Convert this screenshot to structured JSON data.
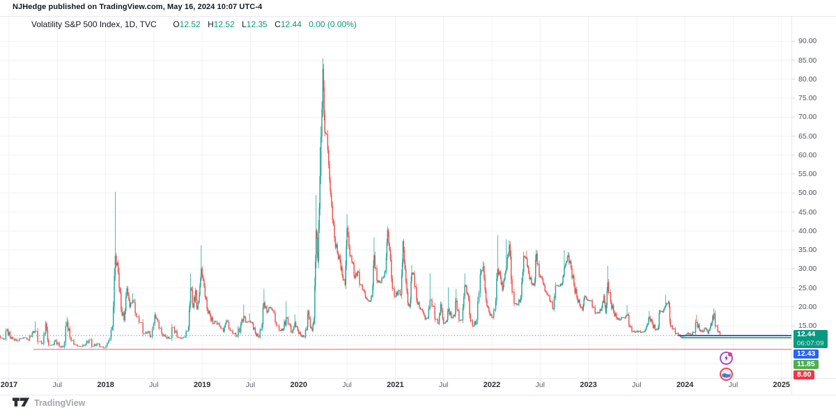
{
  "page": {
    "attribution": "NJHedge published on TradingView.com, May 16, 2024 10:07 UTC-4",
    "watermark_brand": "TradingView"
  },
  "legend": {
    "symbol_title": "Volatility S&P 500 Index, 1D, TVC",
    "open_label": "O",
    "open": "12.52",
    "high_label": "H",
    "high": "12.52",
    "low_label": "L",
    "low": "12.35",
    "close_label": "C",
    "close": "12.44",
    "change": "0.00 (0.00%)"
  },
  "colors": {
    "up": "#26a69a",
    "down": "#ef5350",
    "accent_teal": "#089981",
    "accent_blue": "#2962ff",
    "accent_green": "#4caf50",
    "accent_red": "#f23645",
    "grid": "#f0f2f6",
    "axis_stub": "#d1d4dc"
  },
  "chart_data": {
    "type": "candlestick",
    "title": "Volatility S&P 500 Index",
    "interval": "1D",
    "exchange": "TVC",
    "legend_ohlc": {
      "open": 12.52,
      "high": 12.52,
      "low": 12.35,
      "close": 12.44,
      "change_pct": "0.00%"
    },
    "y_axis": {
      "tick_labels": [
        90,
        85,
        80,
        75,
        70,
        65,
        60,
        55,
        50,
        45,
        40,
        35,
        30,
        25,
        20,
        15
      ],
      "unlabeled_grid": [
        10,
        5
      ],
      "format": "0.00",
      "side": "right"
    },
    "x_axis": {
      "ticks": [
        {
          "t": 2017.0,
          "label": "2017",
          "major": true
        },
        {
          "t": 2017.5,
          "label": "Jul"
        },
        {
          "t": 2018.0,
          "label": "2018",
          "major": true
        },
        {
          "t": 2018.5,
          "label": "Jul"
        },
        {
          "t": 2019.0,
          "label": "2019",
          "major": true
        },
        {
          "t": 2019.5,
          "label": "Jul"
        },
        {
          "t": 2020.0,
          "label": "2020",
          "major": true
        },
        {
          "t": 2020.5,
          "label": "Jul"
        },
        {
          "t": 2021.0,
          "label": "2021",
          "major": true
        },
        {
          "t": 2021.5,
          "label": "Jul"
        },
        {
          "t": 2022.0,
          "label": "2022",
          "major": true
        },
        {
          "t": 2022.5,
          "label": "Jul"
        },
        {
          "t": 2023.0,
          "label": "2023",
          "major": true
        },
        {
          "t": 2023.5,
          "label": "Jul"
        },
        {
          "t": 2024.0,
          "label": "2024",
          "major": true
        },
        {
          "t": 2024.5,
          "label": "Jul"
        },
        {
          "t": 2025.0,
          "label": "2025",
          "major": true
        }
      ]
    },
    "price_lines": [
      {
        "kind": "current-price",
        "value": 12.44,
        "label": "12.44",
        "countdown": "06:07:09",
        "color": "#089981",
        "style": "dotted",
        "from_t": 2016.87
      },
      {
        "kind": "level",
        "value": 12.43,
        "label": "12.43",
        "color": "#2962ff",
        "style": "solid",
        "from_t": 2023.93
      },
      {
        "kind": "level",
        "value": 11.85,
        "label": "11.85",
        "color": "#4caf50",
        "style": "solid",
        "from_t": 2023.96
      },
      {
        "kind": "level",
        "value": 8.8,
        "label": "8.80",
        "color": "#f23645",
        "style": "solid",
        "from_t": 2017.25
      }
    ],
    "series": {
      "name": "VIX weekly approximation (t in decimal years, close, optional spike high)",
      "points": [
        [
          2016.87,
          13.0
        ],
        [
          2016.9,
          12.2
        ],
        [
          2016.94,
          11.4
        ],
        [
          2016.98,
          14.0
        ],
        [
          2017.01,
          12.0
        ],
        [
          2017.04,
          11.6
        ],
        [
          2017.08,
          11.0
        ],
        [
          2017.12,
          11.6
        ],
        [
          2017.16,
          11.9
        ],
        [
          2017.2,
          11.2
        ],
        [
          2017.24,
          13.1
        ],
        [
          2017.27,
          13.6,
          16.2
        ],
        [
          2017.31,
          10.8
        ],
        [
          2017.35,
          10.4
        ],
        [
          2017.38,
          15.6,
          16.3
        ],
        [
          2017.41,
          9.9
        ],
        [
          2017.45,
          10.0
        ],
        [
          2017.48,
          11.2
        ],
        [
          2017.52,
          9.6
        ],
        [
          2017.56,
          9.4
        ],
        [
          2017.6,
          16.0,
          17.3
        ],
        [
          2017.63,
          11.9
        ],
        [
          2017.67,
          10.2
        ],
        [
          2017.71,
          9.6
        ],
        [
          2017.75,
          9.5
        ],
        [
          2017.79,
          10.1
        ],
        [
          2017.83,
          11.3
        ],
        [
          2017.87,
          9.6
        ],
        [
          2017.91,
          10.3
        ],
        [
          2017.95,
          9.5
        ],
        [
          2017.99,
          9.2
        ],
        [
          2018.03,
          11.1
        ],
        [
          2018.07,
          14.8
        ],
        [
          2018.1,
          33.5,
          50.3
        ],
        [
          2018.13,
          29.1
        ],
        [
          2018.16,
          19.5
        ],
        [
          2018.19,
          16.5
        ],
        [
          2018.22,
          24.9
        ],
        [
          2018.25,
          20.0
        ],
        [
          2018.28,
          21.8,
          23.6
        ],
        [
          2018.32,
          17.4
        ],
        [
          2018.36,
          15.9
        ],
        [
          2018.4,
          12.9
        ],
        [
          2018.44,
          13.5
        ],
        [
          2018.47,
          12.1
        ],
        [
          2018.51,
          17.9
        ],
        [
          2018.54,
          16.1
        ],
        [
          2018.58,
          12.9
        ],
        [
          2018.62,
          12.1
        ],
        [
          2018.66,
          11.6
        ],
        [
          2018.7,
          14.6
        ],
        [
          2018.74,
          12.1
        ],
        [
          2018.78,
          11.6
        ],
        [
          2018.82,
          12.1
        ],
        [
          2018.86,
          14.8
        ],
        [
          2018.88,
          25.0,
          28.8
        ],
        [
          2018.91,
          19.9
        ],
        [
          2018.93,
          24.2
        ],
        [
          2018.95,
          19.5
        ],
        [
          2018.97,
          23.2
        ],
        [
          2018.99,
          30.1,
          36.2
        ],
        [
          2019.02,
          25.4
        ],
        [
          2019.05,
          19.5
        ],
        [
          2019.08,
          17.8
        ],
        [
          2019.11,
          15.7
        ],
        [
          2019.14,
          16.1
        ],
        [
          2019.18,
          14.9
        ],
        [
          2019.22,
          13.5
        ],
        [
          2019.25,
          16.4
        ],
        [
          2019.29,
          13.7
        ],
        [
          2019.33,
          12.9
        ],
        [
          2019.36,
          12.3
        ],
        [
          2019.4,
          15.4
        ],
        [
          2019.43,
          17.5,
          20.6
        ],
        [
          2019.46,
          15.9
        ],
        [
          2019.49,
          16.3,
          18.3
        ],
        [
          2019.52,
          15.6
        ],
        [
          2019.55,
          13.1
        ],
        [
          2019.58,
          12.1
        ],
        [
          2019.61,
          13.9
        ],
        [
          2019.64,
          21.1,
          24.8
        ],
        [
          2019.67,
          18.5
        ],
        [
          2019.7,
          19.9
        ],
        [
          2019.73,
          19.0
        ],
        [
          2019.77,
          15.0
        ],
        [
          2019.81,
          13.7
        ],
        [
          2019.84,
          14.2
        ],
        [
          2019.87,
          17.2,
          21.5
        ],
        [
          2019.9,
          15.5
        ],
        [
          2019.93,
          13.2
        ],
        [
          2019.96,
          15.9,
          18.0
        ],
        [
          2019.99,
          13.8
        ],
        [
          2020.02,
          12.5
        ],
        [
          2020.05,
          12.1
        ],
        [
          2020.08,
          13.9
        ],
        [
          2020.1,
          18.8
        ],
        [
          2020.12,
          14.9
        ],
        [
          2020.14,
          13.7
        ],
        [
          2020.16,
          17.1
        ],
        [
          2020.18,
          40.1,
          49.5
        ],
        [
          2020.2,
          32.0
        ],
        [
          2020.22,
          54.5,
          62.1
        ],
        [
          2020.25,
          82.7,
          85.47
        ],
        [
          2020.27,
          66.0,
          72.0
        ],
        [
          2020.29,
          65.5
        ],
        [
          2020.32,
          53.5
        ],
        [
          2020.34,
          46.7
        ],
        [
          2020.37,
          38.0
        ],
        [
          2020.4,
          34.2
        ],
        [
          2020.43,
          31.9
        ],
        [
          2020.45,
          28.2
        ],
        [
          2020.48,
          25.8
        ],
        [
          2020.5,
          40.8,
          44.4
        ],
        [
          2020.53,
          33.5
        ],
        [
          2020.56,
          31.5
        ],
        [
          2020.58,
          27.7
        ],
        [
          2020.61,
          29.3
        ],
        [
          2020.64,
          25.8
        ],
        [
          2020.67,
          24.5
        ],
        [
          2020.7,
          22.2
        ],
        [
          2020.73,
          21.4
        ],
        [
          2020.76,
          23.0
        ],
        [
          2020.78,
          33.6,
          38.3
        ],
        [
          2020.81,
          26.9
        ],
        [
          2020.84,
          26.4
        ],
        [
          2020.87,
          27.6
        ],
        [
          2020.9,
          29.4
        ],
        [
          2020.92,
          40.3,
          41.2
        ],
        [
          2020.94,
          35.0
        ],
        [
          2020.97,
          24.8
        ],
        [
          2021.0,
          22.7
        ],
        [
          2021.03,
          24.3
        ],
        [
          2021.06,
          23.2
        ],
        [
          2021.08,
          37.2,
          37.5
        ],
        [
          2021.1,
          30.0
        ],
        [
          2021.13,
          21.0
        ],
        [
          2021.15,
          20.0
        ],
        [
          2021.17,
          28.9,
          31.0
        ],
        [
          2021.19,
          28.6
        ],
        [
          2021.22,
          21.9
        ],
        [
          2021.25,
          19.8
        ],
        [
          2021.28,
          18.9
        ],
        [
          2021.31,
          16.7
        ],
        [
          2021.34,
          17.3
        ],
        [
          2021.36,
          21.8,
          28.9
        ],
        [
          2021.39,
          20.2
        ],
        [
          2021.42,
          16.7
        ],
        [
          2021.45,
          15.7
        ],
        [
          2021.47,
          20.7
        ],
        [
          2021.5,
          15.6
        ],
        [
          2021.53,
          16.2
        ],
        [
          2021.55,
          19.4,
          25.1
        ],
        [
          2021.58,
          17.2
        ],
        [
          2021.61,
          17.6
        ],
        [
          2021.63,
          21.6,
          24.7
        ],
        [
          2021.66,
          16.4
        ],
        [
          2021.69,
          16.5
        ],
        [
          2021.72,
          25.7,
          28.8
        ],
        [
          2021.75,
          23.1
        ],
        [
          2021.78,
          16.3
        ],
        [
          2021.81,
          15.0
        ],
        [
          2021.84,
          16.5
        ],
        [
          2021.88,
          28.6
        ],
        [
          2021.91,
          30.7,
          32.1
        ],
        [
          2021.94,
          21.6
        ],
        [
          2021.97,
          18.7
        ],
        [
          2022.0,
          17.2
        ],
        [
          2022.03,
          19.2
        ],
        [
          2022.06,
          29.9,
          38.9
        ],
        [
          2022.09,
          27.7
        ],
        [
          2022.11,
          24.4
        ],
        [
          2022.13,
          27.4
        ],
        [
          2022.15,
          30.3,
          37.8
        ],
        [
          2022.18,
          36.4,
          37.5
        ],
        [
          2022.21,
          23.9
        ],
        [
          2022.24,
          20.8
        ],
        [
          2022.27,
          20.6
        ],
        [
          2022.3,
          22.7
        ],
        [
          2022.33,
          33.4
        ],
        [
          2022.36,
          32.6,
          34.8
        ],
        [
          2022.38,
          29.0
        ],
        [
          2022.41,
          26.2
        ],
        [
          2022.44,
          25.7
        ],
        [
          2022.46,
          34.0,
          35.1
        ],
        [
          2022.49,
          28.4
        ],
        [
          2022.52,
          27.3
        ],
        [
          2022.55,
          24.2
        ],
        [
          2022.58,
          23.0
        ],
        [
          2022.61,
          21.3
        ],
        [
          2022.64,
          19.5
        ],
        [
          2022.66,
          25.6
        ],
        [
          2022.7,
          25.5
        ],
        [
          2022.73,
          26.3
        ],
        [
          2022.75,
          30.2,
          34.9
        ],
        [
          2022.77,
          31.8
        ],
        [
          2022.79,
          33.6,
          34.5
        ],
        [
          2022.82,
          30.2
        ],
        [
          2022.85,
          25.8
        ],
        [
          2022.88,
          22.5
        ],
        [
          2022.91,
          20.4
        ],
        [
          2022.94,
          19.1
        ],
        [
          2022.96,
          22.8
        ],
        [
          2022.99,
          21.7
        ],
        [
          2023.02,
          21.6
        ],
        [
          2023.05,
          19.9
        ],
        [
          2023.08,
          18.4
        ],
        [
          2023.11,
          18.5
        ],
        [
          2023.14,
          20.0
        ],
        [
          2023.16,
          22.9,
          23.3
        ],
        [
          2023.18,
          18.5
        ],
        [
          2023.2,
          26.5,
          30.8
        ],
        [
          2023.23,
          21.3
        ],
        [
          2023.26,
          18.7
        ],
        [
          2023.29,
          17.1
        ],
        [
          2023.32,
          16.5
        ],
        [
          2023.35,
          17.2
        ],
        [
          2023.38,
          17.0
        ],
        [
          2023.4,
          18.0,
          20.5
        ],
        [
          2023.43,
          14.7
        ],
        [
          2023.46,
          13.5
        ],
        [
          2023.49,
          13.4
        ],
        [
          2023.52,
          13.6
        ],
        [
          2023.55,
          13.3
        ],
        [
          2023.58,
          13.6
        ],
        [
          2023.61,
          15.4
        ],
        [
          2023.63,
          17.3,
          18.9
        ],
        [
          2023.66,
          15.7
        ],
        [
          2023.69,
          14.0
        ],
        [
          2023.72,
          14.1
        ],
        [
          2023.74,
          18.9
        ],
        [
          2023.77,
          18.6
        ],
        [
          2023.8,
          20.4,
          23.1
        ],
        [
          2023.83,
          21.3
        ],
        [
          2023.85,
          14.9
        ],
        [
          2023.88,
          14.2
        ],
        [
          2023.91,
          13.0
        ],
        [
          2023.94,
          12.6
        ],
        [
          2023.96,
          12.1
        ],
        [
          2024.0,
          12.5
        ],
        [
          2024.03,
          13.1
        ],
        [
          2024.06,
          12.7
        ],
        [
          2024.09,
          13.3
        ],
        [
          2024.12,
          15.9,
          17.9
        ],
        [
          2024.15,
          13.9
        ],
        [
          2024.18,
          13.4
        ],
        [
          2024.21,
          14.4
        ],
        [
          2024.24,
          13.0
        ],
        [
          2024.26,
          14.5
        ],
        [
          2024.28,
          16.0
        ],
        [
          2024.3,
          18.2,
          19.6
        ],
        [
          2024.32,
          15.0
        ],
        [
          2024.35,
          13.5
        ],
        [
          2024.37,
          12.44
        ]
      ]
    }
  },
  "markers": [
    {
      "name": "idea-marker-purple",
      "t": 2024.42,
      "color": "#9d4fd1"
    },
    {
      "name": "idea-marker-red",
      "t": 2024.42,
      "color": "#ef4956"
    }
  ]
}
